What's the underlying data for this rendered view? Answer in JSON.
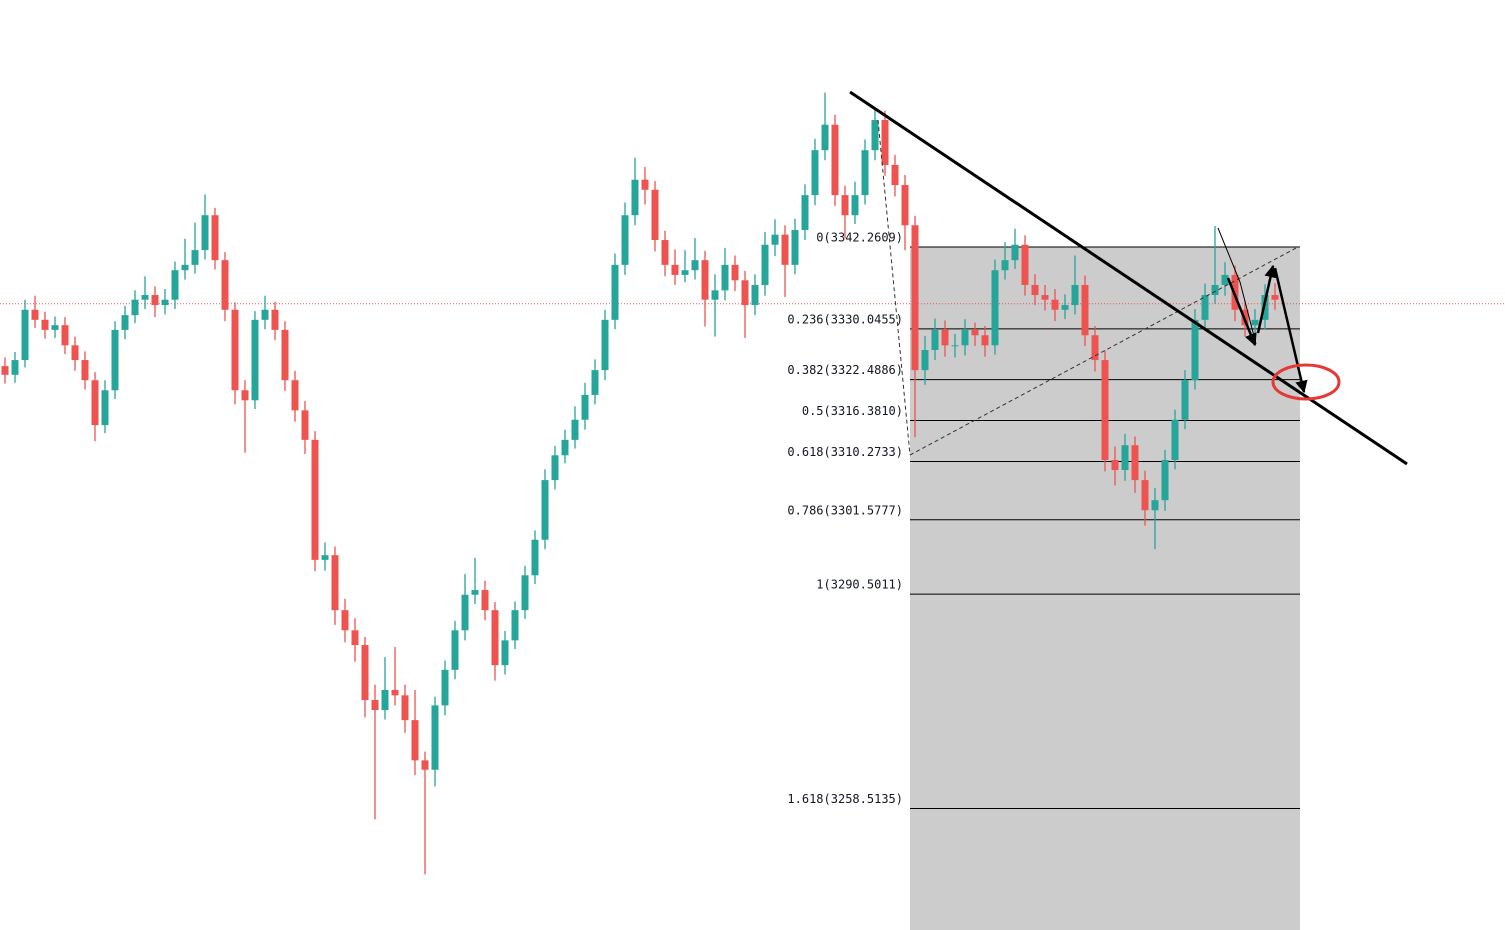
{
  "chart_data": {
    "type": "candlestick",
    "ylim": [
      3240.4,
      3379.1
    ],
    "up_color": "#26a69a",
    "down_color": "#ef5350",
    "price_line": 3333.8,
    "price_line_color": "#ef5350",
    "levels": [
      {
        "value": 3342.2609,
        "label": "0(3342.2609)"
      },
      {
        "value": 3330.0455,
        "label": "0.236(3330.0455)"
      },
      {
        "value": 3322.4886,
        "label": "0.382(3322.4886)"
      },
      {
        "value": 3316.381,
        "label": "0.5(3316.3810)"
      },
      {
        "value": 3310.2733,
        "label": "0.618(3310.2733)"
      },
      {
        "value": 3301.5777,
        "label": "0.786(3301.5777)"
      },
      {
        "value": 3290.5011,
        "label": "1(3290.5011)"
      },
      {
        "value": 3258.5135,
        "label": "1.618(3258.5135)"
      }
    ],
    "ohlc": [
      [
        3324.5,
        3325.8,
        3321.9,
        3323.2
      ],
      [
        3323.2,
        3326.6,
        3322.0,
        3325.4
      ],
      [
        3325.4,
        3334.4,
        3324.3,
        3332.9
      ],
      [
        3332.9,
        3335.0,
        3330.2,
        3331.4
      ],
      [
        3331.4,
        3332.6,
        3328.6,
        3329.9
      ],
      [
        3329.9,
        3331.9,
        3328.7,
        3330.6
      ],
      [
        3330.6,
        3331.8,
        3326.3,
        3327.6
      ],
      [
        3327.6,
        3328.9,
        3323.8,
        3325.4
      ],
      [
        3325.4,
        3326.7,
        3321.0,
        3322.4
      ],
      [
        3322.4,
        3323.6,
        3313.3,
        3315.7
      ],
      [
        3315.7,
        3322.4,
        3314.5,
        3320.9
      ],
      [
        3320.9,
        3331.2,
        3319.6,
        3329.9
      ],
      [
        3329.9,
        3333.5,
        3328.5,
        3332.1
      ],
      [
        3332.1,
        3335.8,
        3330.9,
        3334.4
      ],
      [
        3334.4,
        3337.9,
        3333.0,
        3335.1
      ],
      [
        3335.1,
        3336.4,
        3331.8,
        3333.6
      ],
      [
        3333.6,
        3336.0,
        3332.2,
        3334.4
      ],
      [
        3334.4,
        3340.1,
        3333.0,
        3338.8
      ],
      [
        3338.8,
        3343.5,
        3337.4,
        3339.6
      ],
      [
        3339.6,
        3345.9,
        3338.3,
        3341.8
      ],
      [
        3341.8,
        3350.1,
        3340.4,
        3347.0
      ],
      [
        3347.0,
        3348.1,
        3338.9,
        3340.3
      ],
      [
        3340.3,
        3341.5,
        3331.2,
        3332.9
      ],
      [
        3332.9,
        3334.0,
        3318.8,
        3320.9
      ],
      [
        3320.9,
        3322.4,
        3311.6,
        3319.4
      ],
      [
        3319.4,
        3332.7,
        3318.1,
        3331.4
      ],
      [
        3331.4,
        3335.0,
        3330.0,
        3332.9
      ],
      [
        3332.9,
        3334.1,
        3328.4,
        3329.9
      ],
      [
        3329.9,
        3331.2,
        3320.8,
        3322.4
      ],
      [
        3322.4,
        3323.8,
        3316.2,
        3317.9
      ],
      [
        3317.9,
        3319.3,
        3311.4,
        3313.5
      ],
      [
        3313.5,
        3314.8,
        3293.9,
        3295.6
      ],
      [
        3295.6,
        3298.2,
        3294.0,
        3296.3
      ],
      [
        3296.3,
        3297.6,
        3285.9,
        3288.1
      ],
      [
        3288.1,
        3289.8,
        3283.3,
        3285.1
      ],
      [
        3285.1,
        3286.9,
        3280.4,
        3282.9
      ],
      [
        3282.9,
        3284.1,
        3272.1,
        3274.7
      ],
      [
        3274.7,
        3277.0,
        3256.9,
        3273.2
      ],
      [
        3273.2,
        3281.1,
        3271.8,
        3276.2
      ],
      [
        3276.2,
        3282.6,
        3273.9,
        3275.4
      ],
      [
        3275.4,
        3277.0,
        3269.8,
        3271.7
      ],
      [
        3271.7,
        3276.2,
        3263.5,
        3265.7
      ],
      [
        3265.7,
        3267.0,
        3248.7,
        3264.3
      ],
      [
        3264.3,
        3275.2,
        3261.8,
        3273.9
      ],
      [
        3273.9,
        3280.6,
        3272.4,
        3279.2
      ],
      [
        3279.2,
        3286.5,
        3277.8,
        3285.1
      ],
      [
        3285.1,
        3293.5,
        3283.6,
        3290.4
      ],
      [
        3290.4,
        3295.9,
        3289.0,
        3291.1
      ],
      [
        3291.1,
        3292.5,
        3286.6,
        3288.1
      ],
      [
        3288.1,
        3289.3,
        3277.6,
        3279.9
      ],
      [
        3279.9,
        3285.0,
        3278.5,
        3283.6
      ],
      [
        3283.6,
        3289.4,
        3282.3,
        3288.1
      ],
      [
        3288.1,
        3294.7,
        3286.8,
        3293.3
      ],
      [
        3293.3,
        3300.0,
        3292.0,
        3298.6
      ],
      [
        3298.6,
        3309.1,
        3297.2,
        3307.5
      ],
      [
        3307.5,
        3312.6,
        3306.1,
        3311.2
      ],
      [
        3311.2,
        3315.0,
        3310.0,
        3313.5
      ],
      [
        3313.5,
        3318.5,
        3312.2,
        3316.5
      ],
      [
        3316.5,
        3322.0,
        3315.0,
        3320.2
      ],
      [
        3320.2,
        3325.5,
        3318.8,
        3323.9
      ],
      [
        3323.9,
        3332.9,
        3322.4,
        3331.4
      ],
      [
        3331.4,
        3341.3,
        3330.0,
        3339.6
      ],
      [
        3339.6,
        3348.9,
        3338.1,
        3347.0
      ],
      [
        3347.0,
        3355.6,
        3345.5,
        3352.3
      ],
      [
        3352.3,
        3354.2,
        3348.6,
        3350.8
      ],
      [
        3350.8,
        3352.1,
        3341.6,
        3343.3
      ],
      [
        3343.3,
        3344.7,
        3337.9,
        3339.6
      ],
      [
        3339.6,
        3341.9,
        3336.6,
        3338.1
      ],
      [
        3338.1,
        3341.8,
        3337.0,
        3338.8
      ],
      [
        3338.8,
        3343.6,
        3337.4,
        3340.3
      ],
      [
        3340.3,
        3341.7,
        3330.4,
        3334.4
      ],
      [
        3334.4,
        3338.2,
        3328.9,
        3335.8
      ],
      [
        3335.8,
        3342.1,
        3334.3,
        3339.6
      ],
      [
        3339.6,
        3341.0,
        3335.7,
        3337.3
      ],
      [
        3337.3,
        3338.7,
        3328.7,
        3333.6
      ],
      [
        3333.6,
        3338.2,
        3332.1,
        3336.6
      ],
      [
        3336.6,
        3344.5,
        3335.0,
        3342.6
      ],
      [
        3342.6,
        3346.4,
        3340.9,
        3344.1
      ],
      [
        3344.1,
        3345.5,
        3334.8,
        3339.6
      ],
      [
        3339.6,
        3346.5,
        3338.2,
        3344.8
      ],
      [
        3344.8,
        3351.6,
        3343.3,
        3350.0
      ],
      [
        3350.0,
        3358.4,
        3348.5,
        3356.7
      ],
      [
        3356.7,
        3365.3,
        3355.2,
        3360.5
      ],
      [
        3360.5,
        3362.0,
        3348.4,
        3350.0
      ],
      [
        3350.0,
        3351.4,
        3343.6,
        3347.0
      ],
      [
        3347.0,
        3352.0,
        3345.7,
        3350.0
      ],
      [
        3350.0,
        3358.3,
        3348.6,
        3356.7
      ],
      [
        3356.7,
        3362.9,
        3355.2,
        3361.2
      ],
      [
        3361.2,
        3362.6,
        3352.9,
        3354.5
      ],
      [
        3354.5,
        3356.0,
        3349.8,
        3351.5
      ],
      [
        3351.5,
        3353.0,
        3341.8,
        3345.5
      ],
      [
        3345.5,
        3346.9,
        3313.9,
        3323.9
      ],
      [
        3323.9,
        3329.0,
        3321.7,
        3326.9
      ],
      [
        3326.9,
        3331.6,
        3325.4,
        3329.9
      ],
      [
        3329.9,
        3331.3,
        3325.9,
        3327.6
      ],
      [
        3327.6,
        3329.3,
        3325.8,
        3327.6
      ],
      [
        3327.6,
        3331.5,
        3326.1,
        3329.9
      ],
      [
        3329.9,
        3331.0,
        3327.5,
        3329.1
      ],
      [
        3329.1,
        3330.5,
        3325.9,
        3327.6
      ],
      [
        3327.6,
        3340.4,
        3326.2,
        3338.8
      ],
      [
        3338.8,
        3343.0,
        3337.4,
        3340.3
      ],
      [
        3340.3,
        3345.0,
        3339.0,
        3342.6
      ],
      [
        3342.6,
        3344.0,
        3335.0,
        3336.6
      ],
      [
        3336.6,
        3338.2,
        3333.6,
        3335.1
      ],
      [
        3335.1,
        3336.6,
        3332.8,
        3334.4
      ],
      [
        3334.4,
        3336.0,
        3331.2,
        3332.9
      ],
      [
        3332.9,
        3335.2,
        3331.5,
        3333.6
      ],
      [
        3333.6,
        3341.0,
        3332.2,
        3336.6
      ],
      [
        3336.6,
        3338.0,
        3327.5,
        3329.1
      ],
      [
        3329.1,
        3330.5,
        3323.7,
        3325.4
      ],
      [
        3325.4,
        3326.8,
        3308.8,
        3310.5
      ],
      [
        3310.5,
        3312.5,
        3306.7,
        3309.0
      ],
      [
        3309.0,
        3314.4,
        3307.4,
        3312.7
      ],
      [
        3312.7,
        3314.0,
        3305.6,
        3307.5
      ],
      [
        3307.5,
        3308.9,
        3300.7,
        3303.0
      ],
      [
        3303.0,
        3306.3,
        3297.2,
        3304.5
      ],
      [
        3304.5,
        3312.0,
        3302.9,
        3310.5
      ],
      [
        3310.5,
        3318.0,
        3309.1,
        3316.5
      ],
      [
        3316.5,
        3323.9,
        3315.1,
        3322.4
      ],
      [
        3322.4,
        3333.0,
        3321.0,
        3331.4
      ],
      [
        3331.4,
        3336.8,
        3330.0,
        3335.1
      ],
      [
        3335.1,
        3345.4,
        3333.8,
        3336.6
      ],
      [
        3336.6,
        3340.0,
        3335.0,
        3338.1
      ],
      [
        3338.1,
        3339.5,
        3331.2,
        3332.9
      ],
      [
        3332.9,
        3334.3,
        3328.9,
        3330.6
      ],
      [
        3330.6,
        3333.0,
        3327.9,
        3331.4
      ],
      [
        3331.4,
        3336.7,
        3330.0,
        3335.1
      ],
      [
        3335.1,
        3336.9,
        3332.9,
        3334.4
      ]
    ]
  }
}
